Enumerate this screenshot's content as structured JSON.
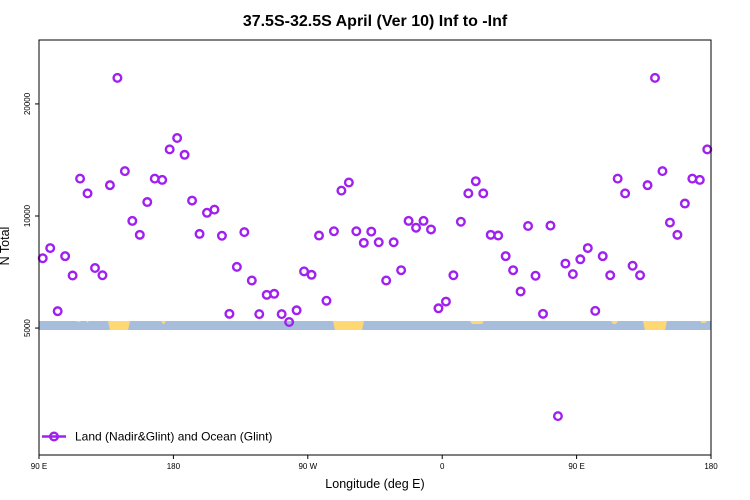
{
  "chart_data": {
    "type": "scatter",
    "title": "37.5S-32.5S April (Ver 10)   Inf to -Inf",
    "xlabel": "Longitude (deg E)",
    "ylabel": "N Total",
    "x_ticks": [
      {
        "value": 90,
        "label": "90 E"
      },
      {
        "value": 180,
        "label": "180"
      },
      {
        "value": 270,
        "label": "90 W"
      },
      {
        "value": 360,
        "label": "0"
      },
      {
        "value": 450,
        "label": "90 E"
      },
      {
        "value": 540,
        "label": "180"
      }
    ],
    "y_ticks": [
      {
        "value": 5000,
        "label": "5000"
      },
      {
        "value": 10000,
        "label": "10000"
      },
      {
        "value": 20000,
        "label": "20000"
      }
    ],
    "xlim": [
      90,
      540
    ],
    "ylim": [
      2280,
      29700
    ],
    "y_scale": "log",
    "grid": false,
    "legend_position": "bottom-left",
    "colors": {
      "series": "#a020f0",
      "ocean": "#a6bedc",
      "land": "#ffd873"
    },
    "series": [
      {
        "name": "Land (Nadir&Glint) and Ocean (Glint)",
        "marker": "open-circle",
        "points": [
          [
            92.5,
            7700
          ],
          [
            97.5,
            8200
          ],
          [
            102.5,
            5550
          ],
          [
            107.5,
            7800
          ],
          [
            112.5,
            6920
          ],
          [
            117.5,
            12600
          ],
          [
            122.5,
            11500
          ],
          [
            127.5,
            7250
          ],
          [
            132.5,
            6930
          ],
          [
            137.5,
            12100
          ],
          [
            142.5,
            23500
          ],
          [
            147.5,
            13200
          ],
          [
            152.5,
            9700
          ],
          [
            157.5,
            8900
          ],
          [
            162.5,
            10900
          ],
          [
            167.5,
            12600
          ],
          [
            172.5,
            12500
          ],
          [
            177.5,
            15100
          ],
          [
            182.5,
            16200
          ],
          [
            187.5,
            14600
          ],
          [
            192.5,
            11000
          ],
          [
            197.5,
            8950
          ],
          [
            202.5,
            10200
          ],
          [
            207.5,
            10400
          ],
          [
            212.5,
            8850
          ],
          [
            217.5,
            5460
          ],
          [
            222.5,
            7300
          ],
          [
            227.5,
            9050
          ],
          [
            232.5,
            6710
          ],
          [
            237.5,
            5450
          ],
          [
            242.5,
            6140
          ],
          [
            247.5,
            6180
          ],
          [
            252.5,
            5450
          ],
          [
            257.5,
            5190
          ],
          [
            262.5,
            5580
          ],
          [
            267.5,
            7100
          ],
          [
            272.5,
            6950
          ],
          [
            277.5,
            8860
          ],
          [
            282.5,
            5920
          ],
          [
            287.5,
            9100
          ],
          [
            292.5,
            11700
          ],
          [
            297.5,
            12300
          ],
          [
            302.5,
            9100
          ],
          [
            307.5,
            8470
          ],
          [
            312.5,
            9080
          ],
          [
            317.5,
            8500
          ],
          [
            322.5,
            6710
          ],
          [
            327.5,
            8500
          ],
          [
            332.5,
            7150
          ],
          [
            337.5,
            9700
          ],
          [
            342.5,
            9300
          ],
          [
            347.5,
            9700
          ],
          [
            352.5,
            9200
          ],
          [
            357.5,
            5650
          ],
          [
            362.5,
            5890
          ],
          [
            367.5,
            6930
          ],
          [
            372.5,
            9650
          ],
          [
            377.5,
            11500
          ],
          [
            382.5,
            12400
          ],
          [
            387.5,
            11500
          ],
          [
            392.5,
            8900
          ],
          [
            397.5,
            8860
          ],
          [
            402.5,
            7800
          ],
          [
            407.5,
            7150
          ],
          [
            412.5,
            6270
          ],
          [
            417.5,
            9400
          ],
          [
            422.5,
            6910
          ],
          [
            427.5,
            5460
          ],
          [
            432.5,
            9420
          ],
          [
            437.5,
            2900
          ],
          [
            442.5,
            7450
          ],
          [
            447.5,
            6980
          ],
          [
            452.5,
            7650
          ],
          [
            457.5,
            8200
          ],
          [
            462.5,
            5560
          ],
          [
            467.5,
            7800
          ],
          [
            472.5,
            6930
          ],
          [
            477.5,
            12600
          ],
          [
            482.5,
            11500
          ],
          [
            487.5,
            7350
          ],
          [
            492.5,
            6930
          ],
          [
            497.5,
            12100
          ],
          [
            502.5,
            23500
          ],
          [
            507.5,
            13200
          ],
          [
            512.5,
            9600
          ],
          [
            517.5,
            8900
          ],
          [
            522.5,
            10800
          ],
          [
            527.5,
            12600
          ],
          [
            532.5,
            12500
          ],
          [
            537.5,
            15100
          ]
        ]
      }
    ]
  }
}
